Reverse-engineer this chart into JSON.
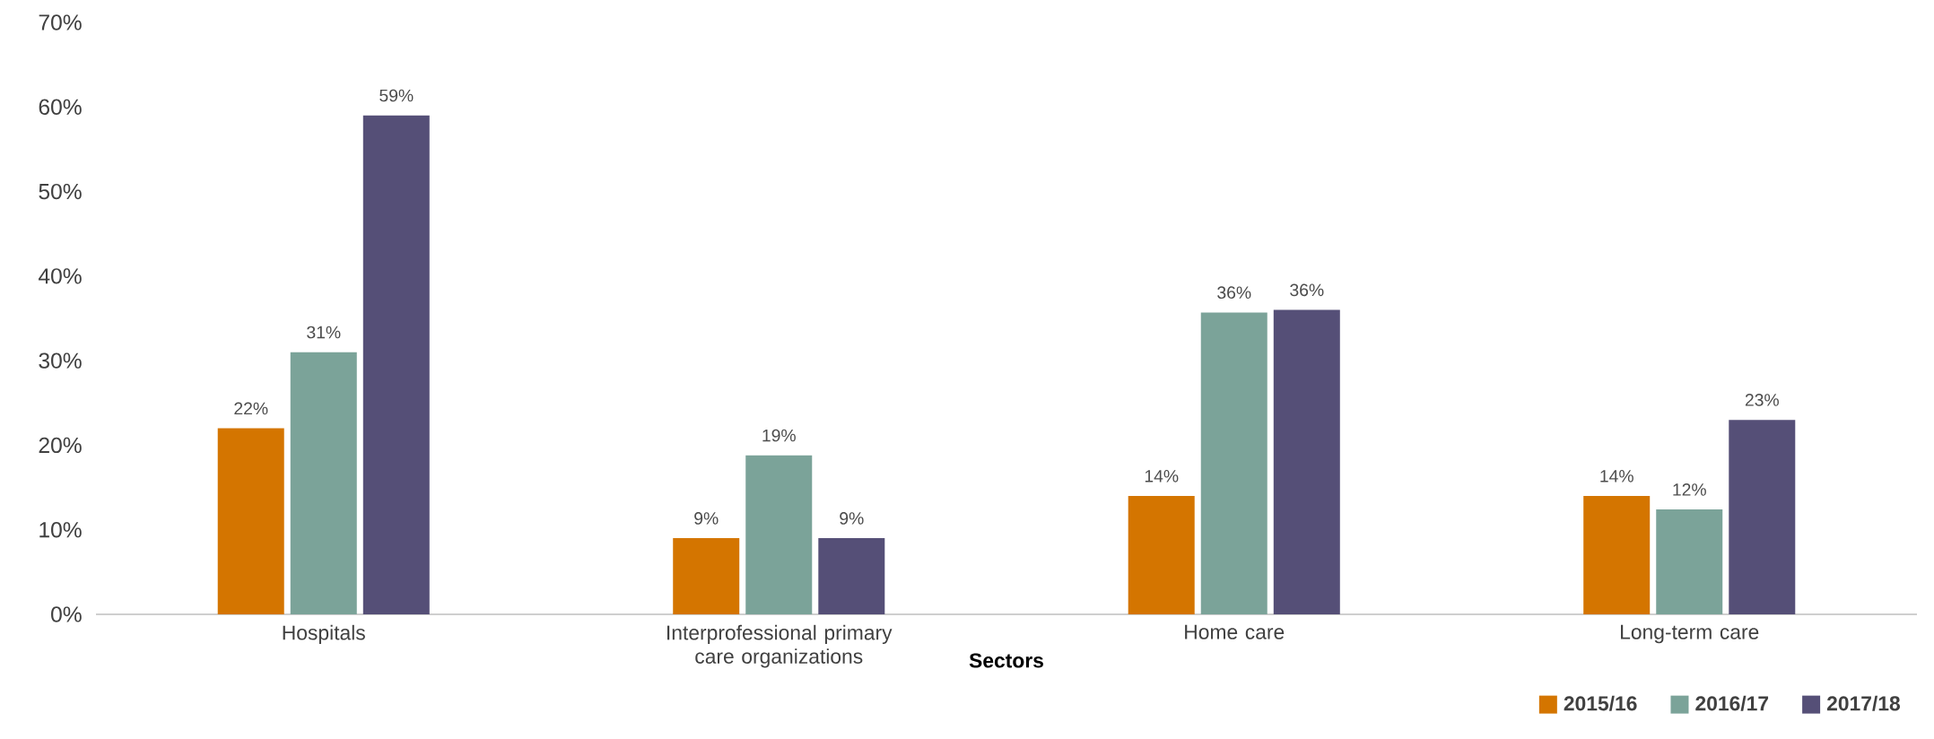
{
  "chart_data": {
    "type": "bar",
    "xlabel": "Sectors",
    "categories": [
      "Hospitals",
      "Interprofessional primary care organizations",
      "Home care",
      "Long-term care"
    ],
    "series": [
      {
        "name": "2015/16",
        "color": "#d47500",
        "values": [
          22,
          9,
          14,
          14
        ],
        "value_labels": [
          "22%",
          "9%",
          "14%",
          "14%"
        ]
      },
      {
        "name": "2016/17",
        "color": "#7ba399",
        "values": [
          31,
          18.8,
          35.7,
          12.4
        ],
        "value_labels": [
          "31%",
          "19%",
          "36%",
          "12%"
        ]
      },
      {
        "name": "2017/18",
        "color": "#554f77",
        "values": [
          59,
          9,
          36,
          23
        ],
        "value_labels": [
          "59%",
          "9%",
          "36%",
          "23%"
        ]
      }
    ],
    "ylim": [
      0,
      70
    ],
    "yticks": [
      {
        "value": 0,
        "label": "0%"
      },
      {
        "value": 10,
        "label": "10%"
      },
      {
        "value": 20,
        "label": "20%"
      },
      {
        "value": 30,
        "label": "30%"
      },
      {
        "value": 40,
        "label": "40%"
      },
      {
        "value": 50,
        "label": "50%"
      },
      {
        "value": 60,
        "label": "60%"
      },
      {
        "value": 70,
        "label": "70%"
      }
    ],
    "legend": "bottom right"
  }
}
